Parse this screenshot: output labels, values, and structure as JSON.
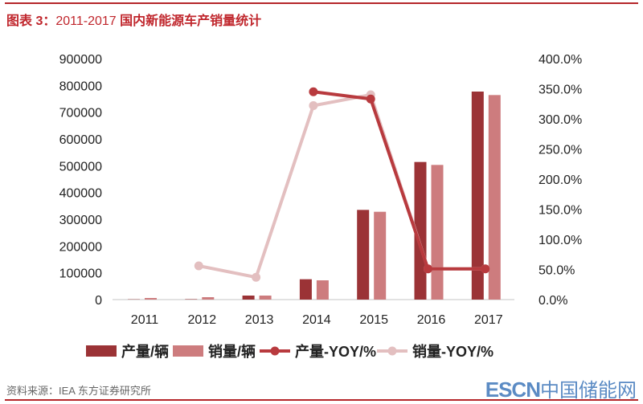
{
  "header": {
    "title_prefix": "图表 3：",
    "title_years": "2011-2017",
    "title_main": " 国内新能源车产销量统计"
  },
  "footer": {
    "source": "资料来源：IEA   东方证券研究所",
    "logo_latin": "ESCN",
    "logo_cn": "中国储能网"
  },
  "colors": {
    "production_bar": "#9b3336",
    "sales_bar": "#cd7c7e",
    "production_line": "#b83a3e",
    "sales_line": "#e3bfc0",
    "title": "#c0272d"
  },
  "chart_data": {
    "type": "bar+line",
    "categories": [
      "2011",
      "2012",
      "2013",
      "2014",
      "2015",
      "2016",
      "2017"
    ],
    "y_left": {
      "range": [
        0,
        900000
      ],
      "ticks": [
        "0",
        "100000",
        "200000",
        "300000",
        "400000",
        "500000",
        "600000",
        "700000",
        "800000",
        "900000"
      ]
    },
    "y_right": {
      "range": [
        0,
        400
      ],
      "ticks": [
        "0.0%",
        "50.0%",
        "100.0%",
        "150.0%",
        "200.0%",
        "250.0%",
        "300.0%",
        "350.0%",
        "400.0%"
      ]
    },
    "grid": false,
    "legend_position": "bottom",
    "series": [
      {
        "name": "产量/辆",
        "type": "bar",
        "axis": "left",
        "values": [
          1000,
          1500,
          15000,
          76000,
          335000,
          514000,
          777000
        ]
      },
      {
        "name": "销量/辆",
        "type": "bar",
        "axis": "left",
        "values": [
          6000,
          9000,
          15000,
          72000,
          328000,
          503000,
          764000
        ]
      },
      {
        "name": "产量-YOY/%",
        "type": "line",
        "axis": "right",
        "values": [
          null,
          null,
          null,
          345,
          333,
          51,
          51
        ]
      },
      {
        "name": "销量-YOY/%",
        "type": "line",
        "axis": "right",
        "values": [
          null,
          56,
          37,
          322,
          340,
          51,
          51
        ]
      }
    ]
  }
}
